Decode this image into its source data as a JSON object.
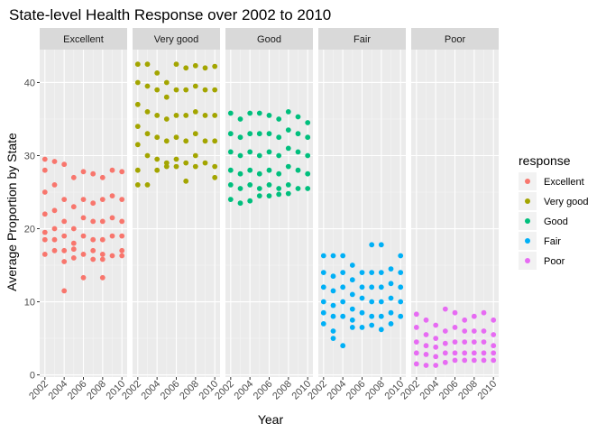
{
  "chart_data": {
    "type": "scatter",
    "title": "State-level Health Response over 2002 to 2010",
    "xlabel": "Year",
    "ylabel": "Average Proportion by State",
    "facets": [
      "Excellent",
      "Very good",
      "Good",
      "Fair",
      "Poor"
    ],
    "x_ticks": [
      "2002",
      "2004",
      "2006",
      "2008",
      "2010"
    ],
    "xlim": [
      2002,
      2010
    ],
    "y_ticks": [
      0,
      10,
      20,
      30,
      40
    ],
    "ylim": [
      -0.3,
      44.5
    ],
    "grid": true,
    "legend": {
      "title": "response",
      "placement": "right",
      "entries": [
        "Excellent",
        "Very good",
        "Good",
        "Fair",
        "Poor"
      ]
    },
    "colors": {
      "Excellent": "#F8766D",
      "Very good": "#A3A500",
      "Good": "#00BF7D",
      "Fair": "#00B0F6",
      "Poor": "#E76BF3"
    },
    "series": [
      {
        "name": "Excellent",
        "x": [
          2002,
          2002,
          2002,
          2002,
          2002,
          2002,
          2002,
          2003,
          2003,
          2003,
          2003,
          2003,
          2003,
          2004,
          2004,
          2004,
          2004,
          2004,
          2004,
          2004,
          2005,
          2005,
          2005,
          2005,
          2005,
          2005,
          2006,
          2006,
          2006,
          2006,
          2006,
          2006,
          2007,
          2007,
          2007,
          2007,
          2007,
          2007,
          2008,
          2008,
          2008,
          2008,
          2008,
          2008,
          2008,
          2009,
          2009,
          2009,
          2009,
          2009,
          2010,
          2010,
          2010,
          2010,
          2010,
          2010
        ],
        "y": [
          29.5,
          25.0,
          22.0,
          19.5,
          18.5,
          16.5,
          28.0,
          29.2,
          26.0,
          22.5,
          20.0,
          17.0,
          18.5,
          28.8,
          24.0,
          21.0,
          19.0,
          17.0,
          15.5,
          11.5,
          27.0,
          23.0,
          20.0,
          18.0,
          16.0,
          17.2,
          27.8,
          24.0,
          21.5,
          19.0,
          16.5,
          13.3,
          27.5,
          23.5,
          21.0,
          18.5,
          15.8,
          17.0,
          27.0,
          24.0,
          21.0,
          18.5,
          16.5,
          15.8,
          13.3,
          28.0,
          24.5,
          21.5,
          19.0,
          16.3,
          27.8,
          24.0,
          21.0,
          19.0,
          17.0,
          16.3
        ]
      },
      {
        "name": "Very good",
        "x": [
          2002,
          2002,
          2002,
          2002,
          2002,
          2002,
          2002,
          2003,
          2003,
          2003,
          2003,
          2003,
          2003,
          2004,
          2004,
          2004,
          2004,
          2004,
          2004,
          2005,
          2005,
          2005,
          2005,
          2005,
          2005,
          2006,
          2006,
          2006,
          2006,
          2006,
          2006,
          2007,
          2007,
          2007,
          2007,
          2007,
          2007,
          2008,
          2008,
          2008,
          2008,
          2008,
          2008,
          2009,
          2009,
          2009,
          2009,
          2009,
          2010,
          2010,
          2010,
          2010,
          2010,
          2010
        ],
        "y": [
          42.5,
          40.0,
          37.0,
          34.0,
          31.5,
          28.0,
          26.0,
          42.5,
          39.5,
          36.0,
          33.0,
          30.0,
          26.0,
          41.3,
          39.0,
          35.5,
          32.5,
          29.5,
          28.0,
          40.0,
          38.0,
          35.0,
          32.0,
          29.0,
          28.5,
          42.5,
          39.0,
          35.5,
          32.5,
          29.5,
          28.5,
          42.0,
          39.0,
          35.5,
          32.0,
          29.0,
          26.5,
          42.3,
          39.5,
          36.0,
          33.0,
          30.0,
          28.5,
          42.0,
          39.0,
          35.5,
          32.0,
          29.0,
          42.2,
          39.0,
          35.5,
          32.0,
          28.5,
          27.0
        ]
      },
      {
        "name": "Good",
        "x": [
          2002,
          2002,
          2002,
          2002,
          2002,
          2002,
          2003,
          2003,
          2003,
          2003,
          2003,
          2003,
          2004,
          2004,
          2004,
          2004,
          2004,
          2004,
          2005,
          2005,
          2005,
          2005,
          2005,
          2005,
          2006,
          2006,
          2006,
          2006,
          2006,
          2006,
          2007,
          2007,
          2007,
          2007,
          2007,
          2007,
          2008,
          2008,
          2008,
          2008,
          2008,
          2008,
          2009,
          2009,
          2009,
          2009,
          2009,
          2010,
          2010,
          2010,
          2010,
          2010
        ],
        "y": [
          35.8,
          33.0,
          30.5,
          28.0,
          26.0,
          24.0,
          35.0,
          32.5,
          30.0,
          27.5,
          25.5,
          23.5,
          35.8,
          33.0,
          30.5,
          28.0,
          26.0,
          23.8,
          35.8,
          33.0,
          30.0,
          27.5,
          25.5,
          24.5,
          35.5,
          33.0,
          30.5,
          28.0,
          26.0,
          24.5,
          35.0,
          32.5,
          30.0,
          27.5,
          25.5,
          24.7,
          36.0,
          33.5,
          31.0,
          28.5,
          26.0,
          24.8,
          35.3,
          33.0,
          30.5,
          28.0,
          25.5,
          34.5,
          32.5,
          30.0,
          27.5,
          25.5
        ]
      },
      {
        "name": "Fair",
        "x": [
          2002,
          2002,
          2002,
          2002,
          2002,
          2002,
          2003,
          2003,
          2003,
          2003,
          2003,
          2003,
          2003,
          2004,
          2004,
          2004,
          2004,
          2004,
          2004,
          2005,
          2005,
          2005,
          2005,
          2005,
          2005,
          2006,
          2006,
          2006,
          2006,
          2006,
          2007,
          2007,
          2007,
          2007,
          2007,
          2007,
          2008,
          2008,
          2008,
          2008,
          2008,
          2008,
          2009,
          2009,
          2009,
          2009,
          2009,
          2010,
          2010,
          2010,
          2010,
          2010
        ],
        "y": [
          16.3,
          14.0,
          12.0,
          10.0,
          8.5,
          7.0,
          16.3,
          13.5,
          11.5,
          9.5,
          8.0,
          6.0,
          5.0,
          16.3,
          14.0,
          12.0,
          10.0,
          8.0,
          4.0,
          15.0,
          13.0,
          11.0,
          9.0,
          7.5,
          6.5,
          14.0,
          12.0,
          10.5,
          8.5,
          6.5,
          14.0,
          17.8,
          12.0,
          10.0,
          8.0,
          6.8,
          17.8,
          14.0,
          12.0,
          10.0,
          8.0,
          6.2,
          14.5,
          12.5,
          10.5,
          8.5,
          7.0,
          16.3,
          14.0,
          12.0,
          10.0,
          8.0
        ]
      },
      {
        "name": "Poor",
        "x": [
          2002,
          2002,
          2002,
          2002,
          2002,
          2003,
          2003,
          2003,
          2003,
          2003,
          2004,
          2004,
          2004,
          2004,
          2004,
          2005,
          2005,
          2005,
          2005,
          2005,
          2006,
          2006,
          2006,
          2006,
          2006,
          2007,
          2007,
          2007,
          2007,
          2007,
          2008,
          2008,
          2008,
          2008,
          2008,
          2009,
          2009,
          2009,
          2009,
          2009,
          2010,
          2010,
          2010,
          2010,
          2010
        ],
        "y": [
          8.3,
          6.5,
          4.5,
          3.0,
          1.5,
          7.5,
          5.5,
          4.0,
          2.8,
          1.3,
          6.8,
          5.0,
          3.8,
          2.5,
          1.3,
          9.0,
          6.0,
          4.3,
          3.0,
          1.7,
          8.5,
          6.5,
          4.5,
          3.0,
          2.0,
          7.5,
          6.0,
          4.5,
          3.0,
          2.0,
          8.0,
          6.0,
          4.5,
          3.0,
          2.0,
          8.5,
          6.0,
          4.5,
          3.0,
          2.0,
          7.5,
          5.5,
          4.0,
          3.0,
          2.0
        ]
      }
    ]
  }
}
